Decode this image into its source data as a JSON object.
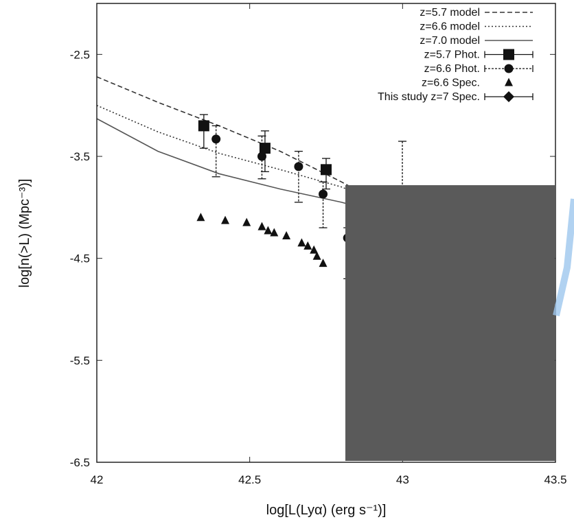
{
  "chart_data": {
    "type": "scatter",
    "xlabel": "log[L(Lyα) (erg s⁻¹)]",
    "ylabel": "log[n(>L) (Mpc⁻³)]",
    "xlim": [
      42,
      43.5
    ],
    "ylim": [
      -6.5,
      -2.0
    ],
    "x_ticks": [
      42,
      42.5,
      43,
      43.5
    ],
    "x_tick_labels": [
      "42",
      "42.5",
      "43",
      "43.5"
    ],
    "y_ticks": [
      -2.5,
      -3.5,
      -4.5,
      -5.5,
      -6.5
    ],
    "y_tick_labels": [
      "-2.5",
      "-3.5",
      "-4.5",
      "-5.5",
      "-6.5"
    ],
    "grid": false,
    "legend_position": "top-right",
    "occluding_box_color": "#5a5a5a",
    "series": [
      {
        "name": "z=5.7 model",
        "kind": "line",
        "style": "dashed",
        "color": "#333333",
        "x": [
          42.0,
          42.2,
          42.4,
          42.6,
          42.8,
          42.85
        ],
        "y": [
          -2.72,
          -2.97,
          -3.2,
          -3.45,
          -3.75,
          -3.83
        ]
      },
      {
        "name": "z=6.6 model",
        "kind": "line",
        "style": "dotted",
        "color": "#333333",
        "x": [
          42.0,
          42.2,
          42.4,
          42.6,
          42.8,
          42.85
        ],
        "y": [
          -3.0,
          -3.26,
          -3.47,
          -3.63,
          -3.8,
          -3.86
        ]
      },
      {
        "name": "z=7.0 model",
        "kind": "line",
        "style": "solid",
        "color": "#555555",
        "x": [
          42.0,
          42.2,
          42.4,
          42.6,
          42.8,
          42.85
        ],
        "y": [
          -3.13,
          -3.45,
          -3.67,
          -3.82,
          -3.95,
          -3.99
        ]
      },
      {
        "name": "z=5.7 Phot.",
        "kind": "points",
        "marker": "square",
        "errstyle": "solid",
        "x": [
          42.35,
          42.55,
          42.75
        ],
        "y": [
          -3.2,
          -3.42,
          -3.63
        ],
        "ylow": [
          -3.42,
          -3.65,
          -3.82
        ],
        "yhigh": [
          -3.09,
          -3.25,
          -3.52
        ]
      },
      {
        "name": "z=6.6 Phot.",
        "kind": "points",
        "marker": "circle",
        "errstyle": "dashed",
        "x": [
          42.39,
          42.54,
          42.66,
          42.74,
          42.82
        ],
        "y": [
          -3.33,
          -3.5,
          -3.6,
          -3.87,
          -4.3
        ],
        "ylow": [
          -3.7,
          -3.72,
          -3.95,
          -4.2,
          -4.7
        ],
        "yhigh": [
          -3.2,
          -3.3,
          -3.45,
          -3.75,
          -4.2
        ]
      },
      {
        "name": "z=6.6 Spec.",
        "kind": "points",
        "marker": "triangle",
        "x": [
          42.34,
          42.42,
          42.49,
          42.54,
          42.56,
          42.58,
          42.62,
          42.67,
          42.69,
          42.71,
          42.72,
          42.74
        ],
        "y": [
          -4.1,
          -4.13,
          -4.15,
          -4.19,
          -4.23,
          -4.25,
          -4.28,
          -4.35,
          -4.38,
          -4.42,
          -4.48,
          -4.55
        ]
      },
      {
        "name": "This study z=7 Spec.",
        "kind": "points",
        "marker": "diamond",
        "x": [],
        "y": []
      }
    ]
  }
}
